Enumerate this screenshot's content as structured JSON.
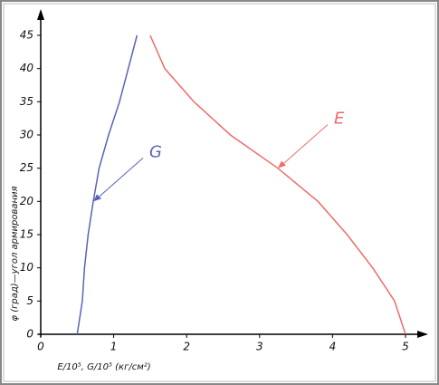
{
  "chart_data": {
    "type": "line",
    "xlabel": "E/10⁵, G/10⁵ (кг/см²)",
    "ylabel": "φ (град)—угол армирования",
    "xlim": [
      0,
      5
    ],
    "ylim": [
      0,
      45
    ],
    "xticks": [
      0,
      1,
      2,
      3,
      4,
      5
    ],
    "yticks": [
      0,
      5,
      10,
      15,
      20,
      25,
      30,
      35,
      40,
      45
    ],
    "series": [
      {
        "name": "G",
        "color": "#5a63b8",
        "x": [
          0.5,
          0.57,
          0.6,
          0.65,
          0.72,
          0.8,
          0.93,
          1.08,
          1.2,
          1.32
        ],
        "values": [
          0,
          5,
          10,
          15,
          20,
          25,
          30,
          35,
          40,
          45
        ]
      },
      {
        "name": "E",
        "color": "#ee6b6b",
        "x": [
          5,
          4.85,
          4.55,
          4.2,
          3.8,
          3.25,
          2.6,
          2.1,
          1.7,
          1.5
        ],
        "values": [
          0,
          5,
          10,
          15,
          20,
          25,
          30,
          35,
          40,
          45
        ]
      }
    ]
  }
}
